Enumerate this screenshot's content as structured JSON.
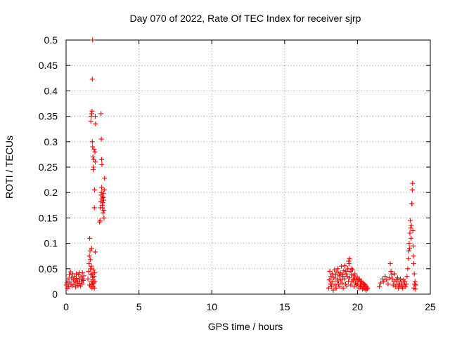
{
  "chart_data": {
    "type": "scatter",
    "title": "Day 070 of 2022, Rate Of TEC Index for receiver sjrp",
    "xlabel": "GPS time / hours",
    "ylabel": "ROTI / TECUs",
    "xlim": [
      0,
      25
    ],
    "ylim": [
      0,
      0.5
    ],
    "x_ticks": [
      0,
      5,
      10,
      15,
      20,
      25
    ],
    "x_tick_labels": [
      "0",
      "5",
      "10",
      "15",
      "20",
      "25"
    ],
    "y_ticks": [
      0,
      0.05,
      0.1,
      0.15,
      0.2,
      0.25,
      0.3,
      0.35,
      0.4,
      0.45,
      0.5
    ],
    "y_tick_labels": [
      "0",
      "0.05",
      "0.1",
      "0.15",
      "0.2",
      "0.25",
      "0.3",
      "0.35",
      "0.4",
      "0.45",
      "0.5"
    ],
    "grid": true,
    "marker": "+",
    "series": [
      {
        "color": "#ff0000",
        "points": [
          [
            0.02,
            0.018
          ],
          [
            0.06,
            0.022
          ],
          [
            0.1,
            0.012
          ],
          [
            0.14,
            0.03
          ],
          [
            0.18,
            0.015
          ],
          [
            0.22,
            0.038
          ],
          [
            0.26,
            0.024
          ],
          [
            0.3,
            0.044
          ],
          [
            0.34,
            0.02
          ],
          [
            0.38,
            0.032
          ],
          [
            0.42,
            0.016
          ],
          [
            0.46,
            0.04
          ],
          [
            0.5,
            0.028
          ],
          [
            0.54,
            0.019
          ],
          [
            0.58,
            0.035
          ],
          [
            0.62,
            0.025
          ],
          [
            0.66,
            0.014
          ],
          [
            0.7,
            0.031
          ],
          [
            0.74,
            0.022
          ],
          [
            0.78,
            0.026
          ],
          [
            0.82,
            0.017
          ],
          [
            0.86,
            0.038
          ],
          [
            0.9,
            0.021
          ],
          [
            0.94,
            0.029
          ],
          [
            0.98,
            0.016
          ],
          [
            1.02,
            0.034
          ],
          [
            1.06,
            0.024
          ],
          [
            1.1,
            0.02
          ],
          [
            1.14,
            0.03
          ],
          [
            1.18,
            0.027
          ],
          [
            1.22,
            0.036
          ],
          [
            1.12,
            0.042
          ],
          [
            0.9,
            0.042
          ],
          [
            0.7,
            0.04
          ],
          [
            1.5,
            0.03
          ],
          [
            1.55,
            0.045
          ],
          [
            1.58,
            0.06
          ],
          [
            1.6,
            0.075
          ],
          [
            1.62,
            0.11
          ],
          [
            1.64,
            0.085
          ],
          [
            1.66,
            0.068
          ],
          [
            1.68,
            0.05
          ],
          [
            1.7,
            0.038
          ],
          [
            1.72,
            0.025
          ],
          [
            1.74,
            0.055
          ],
          [
            1.76,
            0.09
          ],
          [
            1.78,
            0.04
          ],
          [
            1.8,
            0.02
          ],
          [
            1.82,
            0.033
          ],
          [
            1.84,
            0.028
          ],
          [
            1.86,
            0.015
          ],
          [
            1.88,
            0.048
          ],
          [
            1.9,
            0.022
          ],
          [
            1.92,
            0.035
          ],
          [
            1.94,
            0.012
          ],
          [
            1.96,
            0.042
          ],
          [
            1.98,
            0.025
          ],
          [
            2.0,
            0.083
          ],
          [
            1.62,
            0.018
          ],
          [
            1.7,
            0.015
          ],
          [
            1.78,
            0.012
          ],
          [
            1.7,
            0.34
          ],
          [
            1.72,
            0.35
          ],
          [
            1.75,
            0.355
          ],
          [
            1.78,
            0.36
          ],
          [
            1.8,
            0.3
          ],
          [
            1.82,
            0.29
          ],
          [
            1.84,
            0.27
          ],
          [
            1.86,
            0.245
          ],
          [
            1.88,
            0.25
          ],
          [
            1.9,
            0.265
          ],
          [
            1.92,
            0.285
          ],
          [
            1.94,
            0.17
          ],
          [
            1.96,
            0.205
          ],
          [
            2.0,
            0.35
          ],
          [
            2.02,
            0.335
          ],
          [
            1.82,
            0.5
          ],
          [
            1.8,
            0.423
          ],
          [
            2.0,
            0.26
          ],
          [
            1.98,
            0.28
          ],
          [
            2.3,
            0.142
          ],
          [
            2.33,
            0.145
          ],
          [
            2.36,
            0.17
          ],
          [
            2.38,
            0.182
          ],
          [
            2.4,
            0.195
          ],
          [
            2.42,
            0.2
          ],
          [
            2.44,
            0.21
          ],
          [
            2.46,
            0.188
          ],
          [
            2.48,
            0.175
          ],
          [
            2.5,
            0.192
          ],
          [
            2.52,
            0.18
          ],
          [
            2.54,
            0.16
          ],
          [
            2.56,
            0.198
          ],
          [
            2.58,
            0.185
          ],
          [
            2.6,
            0.15
          ],
          [
            2.62,
            0.205
          ],
          [
            2.64,
            0.228
          ],
          [
            2.4,
            0.355
          ],
          [
            2.42,
            0.305
          ],
          [
            2.44,
            0.265
          ],
          [
            2.46,
            0.255
          ],
          [
            2.5,
            0.17
          ],
          [
            2.55,
            0.19
          ],
          [
            2.6,
            0.165
          ],
          [
            18.02,
            0.012
          ],
          [
            18.06,
            0.028
          ],
          [
            18.1,
            0.045
          ],
          [
            18.14,
            0.02
          ],
          [
            18.18,
            0.035
          ],
          [
            18.22,
            0.015
          ],
          [
            18.26,
            0.04
          ],
          [
            18.3,
            0.025
          ],
          [
            18.34,
            0.008
          ],
          [
            18.38,
            0.032
          ],
          [
            18.42,
            0.048
          ],
          [
            18.46,
            0.018
          ],
          [
            18.5,
            0.038
          ],
          [
            18.54,
            0.012
          ],
          [
            18.58,
            0.044
          ],
          [
            18.62,
            0.026
          ],
          [
            18.66,
            0.05
          ],
          [
            18.7,
            0.02
          ],
          [
            18.74,
            0.036
          ],
          [
            18.78,
            0.015
          ],
          [
            18.82,
            0.042
          ],
          [
            18.86,
            0.028
          ],
          [
            18.9,
            0.055
          ],
          [
            18.94,
            0.022
          ],
          [
            18.98,
            0.038
          ],
          [
            19.02,
            0.012
          ],
          [
            19.06,
            0.046
          ],
          [
            19.1,
            0.03
          ],
          [
            19.14,
            0.056
          ],
          [
            19.18,
            0.02
          ],
          [
            19.22,
            0.04
          ],
          [
            19.26,
            0.016
          ],
          [
            19.3,
            0.035
          ],
          [
            19.34,
            0.05
          ],
          [
            19.38,
            0.025
          ],
          [
            19.42,
            0.06
          ],
          [
            19.46,
            0.032
          ],
          [
            19.5,
            0.045
          ],
          [
            19.54,
            0.018
          ],
          [
            19.58,
            0.038
          ],
          [
            19.62,
            0.025
          ],
          [
            19.66,
            0.048
          ],
          [
            19.7,
            0.028
          ],
          [
            19.74,
            0.036
          ],
          [
            19.78,
            0.015
          ],
          [
            19.82,
            0.04
          ],
          [
            19.86,
            0.022
          ],
          [
            19.9,
            0.03
          ],
          [
            19.94,
            0.018
          ],
          [
            19.98,
            0.034
          ],
          [
            20.02,
            0.024
          ],
          [
            20.06,
            0.028
          ],
          [
            20.1,
            0.012
          ],
          [
            20.14,
            0.03
          ],
          [
            20.18,
            0.02
          ],
          [
            20.22,
            0.026
          ],
          [
            20.26,
            0.016
          ],
          [
            20.3,
            0.024
          ],
          [
            20.34,
            0.01
          ],
          [
            20.38,
            0.022
          ],
          [
            20.42,
            0.018
          ],
          [
            20.46,
            0.02
          ],
          [
            20.5,
            0.012
          ],
          [
            20.54,
            0.018
          ],
          [
            20.58,
            0.008
          ],
          [
            20.62,
            0.015
          ],
          [
            20.66,
            0.01
          ],
          [
            20.7,
            0.012
          ],
          [
            18.2,
            0.02
          ],
          [
            18.6,
            0.03
          ],
          [
            18.8,
            0.04
          ],
          [
            19.0,
            0.035
          ],
          [
            19.2,
            0.045
          ],
          [
            19.45,
            0.07
          ],
          [
            19.4,
            0.065
          ],
          [
            19.6,
            0.05
          ],
          [
            19.8,
            0.03
          ],
          [
            20.0,
            0.02
          ],
          [
            20.2,
            0.015
          ],
          [
            20.4,
            0.012
          ],
          [
            21.5,
            0.015
          ],
          [
            21.6,
            0.022
          ],
          [
            21.7,
            0.03
          ],
          [
            21.8,
            0.025
          ],
          [
            21.9,
            0.035
          ],
          [
            22.0,
            0.028
          ],
          [
            22.1,
            0.02
          ],
          [
            22.2,
            0.032
          ],
          [
            22.25,
            0.06
          ],
          [
            22.3,
            0.045
          ],
          [
            22.35,
            0.038
          ],
          [
            22.4,
            0.03
          ],
          [
            22.45,
            0.018
          ],
          [
            22.5,
            0.025
          ],
          [
            22.55,
            0.04
          ],
          [
            22.6,
            0.015
          ],
          [
            22.65,
            0.028
          ],
          [
            22.7,
            0.02
          ],
          [
            22.75,
            0.032
          ],
          [
            22.8,
            0.012
          ],
          [
            22.85,
            0.025
          ],
          [
            22.9,
            0.018
          ],
          [
            22.95,
            0.03
          ],
          [
            23.0,
            0.015
          ],
          [
            23.05,
            0.022
          ],
          [
            23.1,
            0.012
          ],
          [
            23.15,
            0.028
          ],
          [
            23.2,
            0.018
          ],
          [
            23.25,
            0.025
          ],
          [
            23.3,
            0.015
          ],
          [
            23.35,
            0.02
          ],
          [
            23.4,
            0.035
          ],
          [
            23.45,
            0.05
          ],
          [
            23.5,
            0.07
          ],
          [
            23.52,
            0.085
          ],
          [
            23.55,
            0.1
          ],
          [
            23.58,
            0.09
          ],
          [
            23.6,
            0.12
          ],
          [
            23.62,
            0.145
          ],
          [
            23.65,
            0.13
          ],
          [
            23.68,
            0.11
          ],
          [
            23.7,
            0.135
          ],
          [
            23.72,
            0.178
          ],
          [
            23.74,
            0.178
          ],
          [
            23.76,
            0.205
          ],
          [
            23.78,
            0.218
          ],
          [
            23.8,
            0.125
          ],
          [
            23.82,
            0.095
          ],
          [
            23.84,
            0.075
          ],
          [
            23.86,
            0.06
          ],
          [
            23.9,
            0.04
          ],
          [
            23.95,
            0.025
          ],
          [
            24.0,
            0.018
          ],
          [
            23.98,
            0.01
          ],
          [
            23.88,
            0.012
          ],
          [
            23.92,
            0.02
          ]
        ]
      }
    ]
  }
}
